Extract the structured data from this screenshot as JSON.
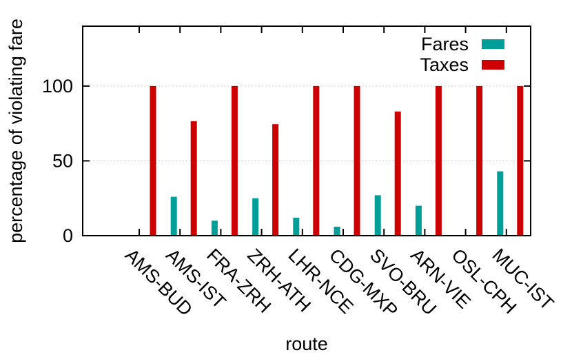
{
  "chart_data": {
    "type": "bar",
    "title": "",
    "xlabel": "route",
    "ylabel": "percentage of violating fare",
    "ylim": [
      0,
      140
    ],
    "yticks": [
      0,
      50,
      100
    ],
    "grid": true,
    "legend_position": "top-right",
    "categories": [
      "AMS-BUD",
      "AMS-IST",
      "FRA-ZRH",
      "ZRH-ATH",
      "LHR-NCE",
      "CDG-MXP",
      "SVO-BRU",
      "ARN-VIE",
      "OSL-CPH",
      "MUC-IST"
    ],
    "series": [
      {
        "name": "Fares",
        "color": "#009e98",
        "values": [
          0,
          26,
          10,
          25,
          12,
          6,
          27,
          20,
          0,
          43
        ]
      },
      {
        "name": "Taxes",
        "color": "#cc0000",
        "values": [
          100,
          76.5,
          100,
          74.5,
          100,
          100,
          83,
          100,
          100,
          100
        ]
      }
    ]
  }
}
